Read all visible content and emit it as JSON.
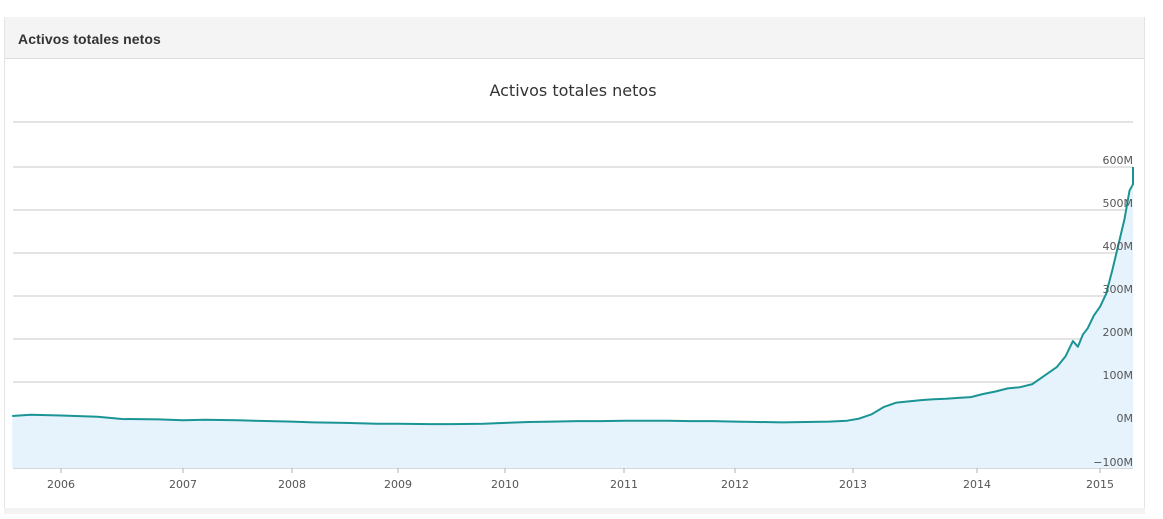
{
  "panel": {
    "title": "Activos totales netos"
  },
  "chart_data": {
    "type": "area",
    "title": "Activos totales netos",
    "xlabel": "",
    "ylabel": "",
    "x_ticks": [
      "2006",
      "2007",
      "2008",
      "2009",
      "2010",
      "2011",
      "2012",
      "2013",
      "2014",
      "2015"
    ],
    "y_ticks": [
      "600M",
      "500M",
      "400M",
      "300M",
      "200M",
      "100M",
      "0M",
      "−100M"
    ],
    "xlim": [
      2005.6,
      2015.3
    ],
    "ylim": [
      -100,
      700
    ],
    "grid": true,
    "legend": "none",
    "colors": {
      "line": "#1a9494",
      "fill": "#e6f3fd",
      "grid": "#c8c8c8"
    },
    "series": [
      {
        "x": [
          2005.6,
          2005.75,
          2006.0,
          2006.3,
          2006.5,
          2006.8,
          2007.0,
          2007.2,
          2007.5,
          2007.8,
          2008.0,
          2008.2,
          2008.5,
          2008.8,
          2009.0,
          2009.3,
          2009.5,
          2009.8,
          2010.0,
          2010.2,
          2010.4,
          2010.6,
          2010.8,
          2011.0,
          2011.2,
          2011.4,
          2011.6,
          2011.8,
          2012.0,
          2012.2,
          2012.4,
          2012.6,
          2012.8,
          2012.95,
          2013.05,
          2013.15,
          2013.25,
          2013.35,
          2013.45,
          2013.55,
          2013.65,
          2013.75,
          2013.85,
          2013.95,
          2014.05,
          2014.15,
          2014.25,
          2014.35,
          2014.45,
          2014.55,
          2014.65,
          2014.72,
          2014.78,
          2014.82,
          2014.86,
          2014.9,
          2014.95,
          2015.0,
          2015.05,
          2015.1,
          2015.15,
          2015.2,
          2015.24,
          2015.27,
          2015.29,
          2015.3
        ],
        "values": [
          21,
          24,
          22,
          19,
          14,
          13,
          11,
          12,
          11,
          9,
          8,
          6,
          5,
          3,
          3,
          2,
          2,
          3,
          5,
          7,
          8,
          9,
          9,
          10,
          10,
          10,
          9,
          9,
          8,
          7,
          6,
          7,
          8,
          10,
          15,
          25,
          42,
          52,
          55,
          58,
          60,
          61,
          63,
          65,
          72,
          78,
          85,
          88,
          95,
          115,
          135,
          160,
          195,
          182,
          210,
          225,
          255,
          275,
          305,
          360,
          420,
          480,
          545,
          560,
          580,
          600
        ]
      }
    ]
  }
}
